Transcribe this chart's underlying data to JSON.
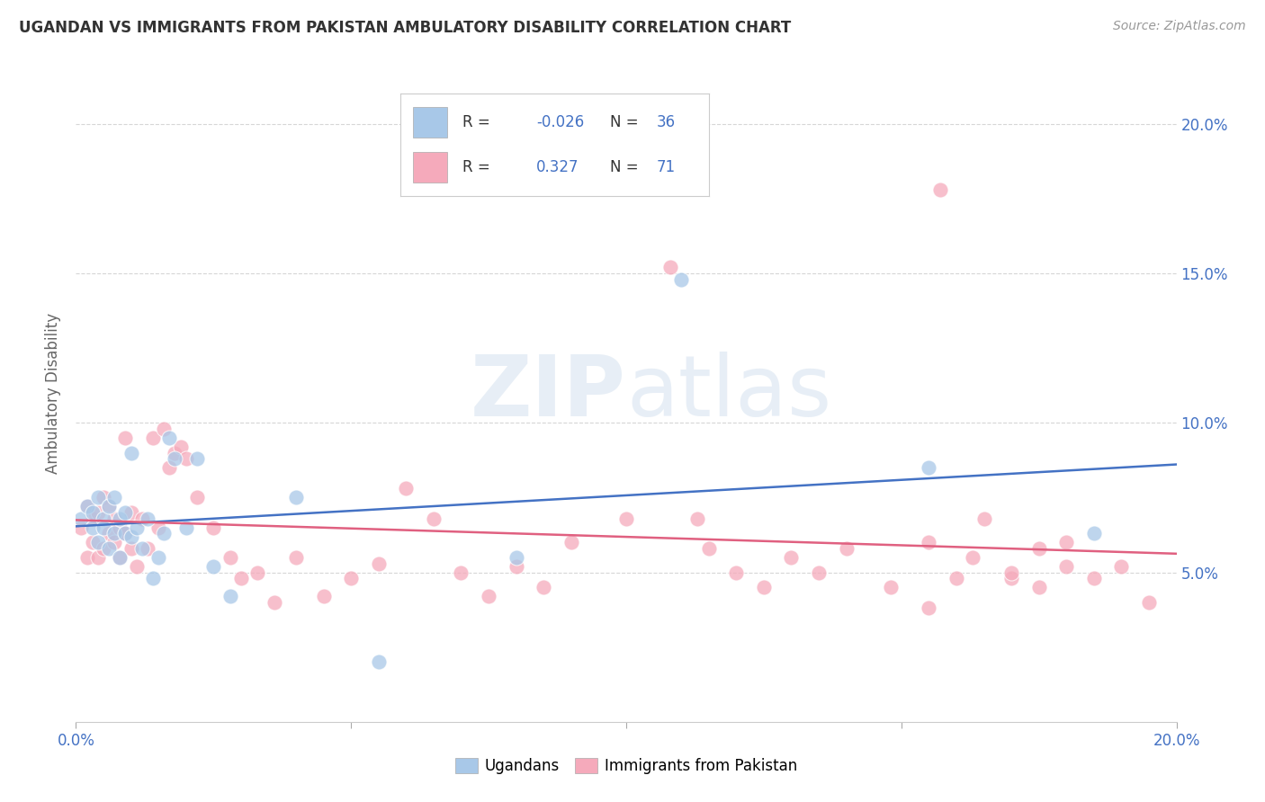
{
  "title": "UGANDAN VS IMMIGRANTS FROM PAKISTAN AMBULATORY DISABILITY CORRELATION CHART",
  "source": "Source: ZipAtlas.com",
  "ylabel": "Ambulatory Disability",
  "x_min": 0.0,
  "x_max": 0.2,
  "y_min": 0.0,
  "y_max": 0.22,
  "x_ticks": [
    0.0,
    0.05,
    0.1,
    0.15,
    0.2
  ],
  "x_tick_labels": [
    "0.0%",
    "",
    "",
    "",
    "20.0%"
  ],
  "y_ticks": [
    0.05,
    0.1,
    0.15,
    0.2
  ],
  "y_tick_labels_right": [
    "5.0%",
    "10.0%",
    "15.0%",
    "20.0%"
  ],
  "ugandan_color": "#a8c8e8",
  "pakistan_color": "#f5aabb",
  "ugandan_line_color": "#4472c4",
  "pakistan_line_color": "#e06080",
  "ugandan_R": -0.026,
  "ugandan_N": 36,
  "pakistan_R": 0.327,
  "pakistan_N": 71,
  "legend_label_ugandan": "Ugandans",
  "legend_label_pakistan": "Immigrants from Pakistan",
  "watermark_zip": "ZIP",
  "watermark_atlas": "atlas",
  "ugandan_x": [
    0.001,
    0.002,
    0.003,
    0.003,
    0.004,
    0.004,
    0.005,
    0.005,
    0.006,
    0.006,
    0.007,
    0.007,
    0.008,
    0.008,
    0.009,
    0.009,
    0.01,
    0.01,
    0.011,
    0.012,
    0.013,
    0.014,
    0.015,
    0.016,
    0.017,
    0.018,
    0.02,
    0.022,
    0.025,
    0.028,
    0.04,
    0.055,
    0.08,
    0.11,
    0.155,
    0.185
  ],
  "ugandan_y": [
    0.068,
    0.072,
    0.065,
    0.07,
    0.075,
    0.06,
    0.068,
    0.065,
    0.072,
    0.058,
    0.063,
    0.075,
    0.068,
    0.055,
    0.063,
    0.07,
    0.062,
    0.09,
    0.065,
    0.058,
    0.068,
    0.048,
    0.055,
    0.063,
    0.095,
    0.088,
    0.065,
    0.088,
    0.052,
    0.042,
    0.075,
    0.02,
    0.055,
    0.148,
    0.085,
    0.063
  ],
  "pakistan_x": [
    0.001,
    0.002,
    0.002,
    0.003,
    0.003,
    0.004,
    0.004,
    0.005,
    0.005,
    0.006,
    0.006,
    0.007,
    0.007,
    0.008,
    0.008,
    0.009,
    0.009,
    0.01,
    0.01,
    0.011,
    0.012,
    0.013,
    0.014,
    0.015,
    0.016,
    0.017,
    0.018,
    0.019,
    0.02,
    0.022,
    0.025,
    0.028,
    0.03,
    0.033,
    0.036,
    0.04,
    0.045,
    0.05,
    0.055,
    0.06,
    0.065,
    0.07,
    0.075,
    0.08,
    0.085,
    0.09,
    0.1,
    0.108,
    0.115,
    0.12,
    0.125,
    0.13,
    0.135,
    0.14,
    0.148,
    0.155,
    0.163,
    0.17,
    0.175,
    0.18,
    0.155,
    0.16,
    0.165,
    0.17,
    0.175,
    0.18,
    0.185,
    0.19,
    0.195,
    0.113,
    0.157
  ],
  "pakistan_y": [
    0.065,
    0.055,
    0.072,
    0.06,
    0.068,
    0.055,
    0.07,
    0.058,
    0.075,
    0.063,
    0.072,
    0.06,
    0.068,
    0.055,
    0.065,
    0.063,
    0.095,
    0.058,
    0.07,
    0.052,
    0.068,
    0.058,
    0.095,
    0.065,
    0.098,
    0.085,
    0.09,
    0.092,
    0.088,
    0.075,
    0.065,
    0.055,
    0.048,
    0.05,
    0.04,
    0.055,
    0.042,
    0.048,
    0.053,
    0.078,
    0.068,
    0.05,
    0.042,
    0.052,
    0.045,
    0.06,
    0.068,
    0.152,
    0.058,
    0.05,
    0.045,
    0.055,
    0.05,
    0.058,
    0.045,
    0.06,
    0.055,
    0.048,
    0.058,
    0.052,
    0.038,
    0.048,
    0.068,
    0.05,
    0.045,
    0.06,
    0.048,
    0.052,
    0.04,
    0.068,
    0.178
  ],
  "grid_color": "#cccccc",
  "grid_linestyle": "--",
  "title_fontsize": 12,
  "tick_label_color": "#4472c4",
  "axis_label_color": "#666666"
}
